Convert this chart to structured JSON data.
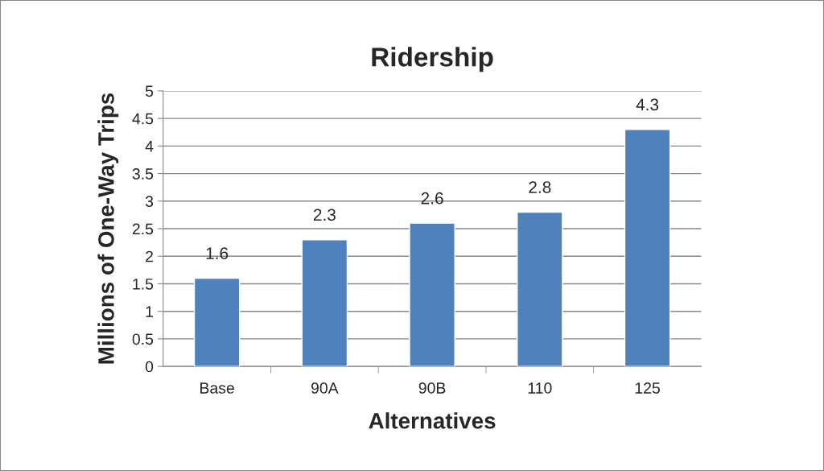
{
  "chart_data": {
    "type": "bar",
    "title": "Ridership",
    "xlabel": "Alternatives",
    "ylabel": "Millions of One-Way Trips",
    "categories": [
      "Base",
      "90A",
      "90B",
      "110",
      "125"
    ],
    "values": [
      1.6,
      2.3,
      2.6,
      2.8,
      4.3
    ],
    "color": "#4f81bd",
    "ylim": [
      0,
      5
    ],
    "yticks": [
      0,
      0.5,
      1,
      1.5,
      2,
      2.5,
      3,
      3.5,
      4,
      4.5,
      5
    ],
    "grid": "y",
    "data_labels": true
  }
}
